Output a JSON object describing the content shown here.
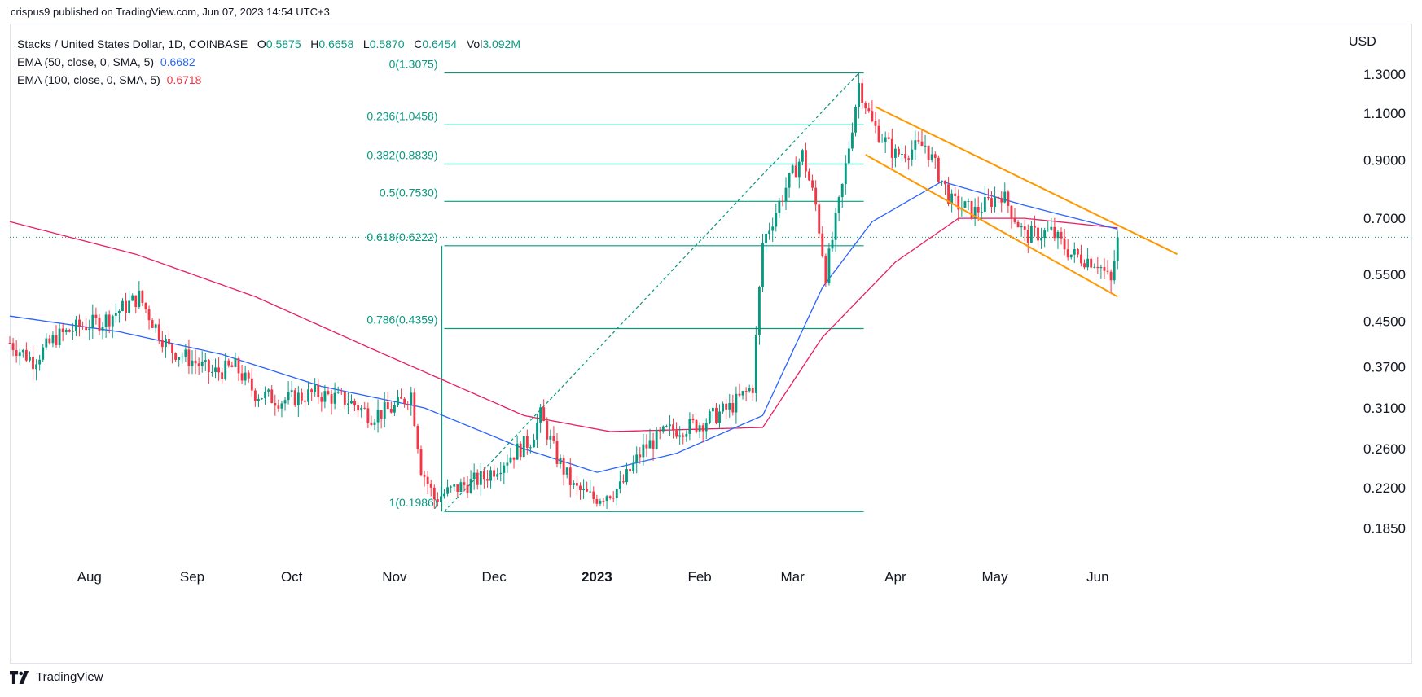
{
  "header": {
    "text": "crispus9 published on TradingView.com, Jun 07, 2023 14:54 UTC+3"
  },
  "legend": {
    "symbol": "Stacks / United States Dollar, 1D, COINBASE",
    "o_label": "O",
    "o": "0.5875",
    "h_label": "H",
    "h": "0.6658",
    "l_label": "L",
    "l": "0.5870",
    "c_label": "C",
    "c": "0.6454",
    "vol_label": "Vol",
    "vol": "3.092M",
    "ema50_label": "EMA (50, close, 0, SMA, 5)",
    "ema50": "0.6682",
    "ema100_label": "EMA (100, close, 0, SMA, 5)",
    "ema100": "0.6718"
  },
  "currency": "USD",
  "footer": {
    "brand": "TradingView"
  },
  "colors": {
    "up": "#089981",
    "down": "#f23645",
    "ema50": "#2962ff",
    "ema100": "#e91e63",
    "fib": "#089981",
    "channel": "#ff9800",
    "price_line": "#089981"
  },
  "chart_data": {
    "type": "candlestick",
    "title": "Stacks / United States Dollar, 1D, COINBASE",
    "xlabel": "",
    "ylabel": "USD",
    "y_scale": "log",
    "ylim": [
      0.16,
      1.45
    ],
    "y_ticks": [
      "1.3000",
      "1.1000",
      "0.9000",
      "0.7000",
      "0.5500",
      "0.4500",
      "0.3700",
      "0.3100",
      "0.2600",
      "0.2200",
      "0.1850"
    ],
    "x_ticks": [
      {
        "label": "Aug",
        "date": "2022-08-01"
      },
      {
        "label": "Sep",
        "date": "2022-09-01"
      },
      {
        "label": "Oct",
        "date": "2022-10-01"
      },
      {
        "label": "Nov",
        "date": "2022-11-01"
      },
      {
        "label": "Dec",
        "date": "2022-12-01"
      },
      {
        "label": "2023",
        "date": "2023-01-01",
        "bold": true
      },
      {
        "label": "Feb",
        "date": "2023-02-01"
      },
      {
        "label": "Mar",
        "date": "2023-03-01"
      },
      {
        "label": "Apr",
        "date": "2023-04-01"
      },
      {
        "label": "May",
        "date": "2023-05-01"
      },
      {
        "label": "Jun",
        "date": "2023-06-01"
      }
    ],
    "date_range": [
      "2022-07-08",
      "2023-07-01"
    ],
    "last_price": 0.6454,
    "close_path": [
      [
        "2022-07-08",
        0.41
      ],
      [
        "2022-07-15",
        0.38
      ],
      [
        "2022-07-22",
        0.42
      ],
      [
        "2022-07-29",
        0.44
      ],
      [
        "2022-08-05",
        0.45
      ],
      [
        "2022-08-12",
        0.48
      ],
      [
        "2022-08-16",
        0.5
      ],
      [
        "2022-08-20",
        0.45
      ],
      [
        "2022-08-25",
        0.4
      ],
      [
        "2022-09-01",
        0.38
      ],
      [
        "2022-09-07",
        0.36
      ],
      [
        "2022-09-14",
        0.37
      ],
      [
        "2022-09-20",
        0.33
      ],
      [
        "2022-09-28",
        0.32
      ],
      [
        "2022-10-08",
        0.33
      ],
      [
        "2022-10-18",
        0.32
      ],
      [
        "2022-10-25",
        0.3
      ],
      [
        "2022-11-01",
        0.31
      ],
      [
        "2022-11-06",
        0.33
      ],
      [
        "2022-11-09",
        0.24
      ],
      [
        "2022-11-13",
        0.21
      ],
      [
        "2022-11-20",
        0.22
      ],
      [
        "2022-11-28",
        0.23
      ],
      [
        "2022-12-05",
        0.25
      ],
      [
        "2022-12-12",
        0.27
      ],
      [
        "2022-12-15",
        0.3
      ],
      [
        "2022-12-20",
        0.25
      ],
      [
        "2022-12-25",
        0.22
      ],
      [
        "2022-12-31",
        0.21
      ],
      [
        "2023-01-08",
        0.22
      ],
      [
        "2023-01-15",
        0.26
      ],
      [
        "2023-01-22",
        0.28
      ],
      [
        "2023-02-01",
        0.29
      ],
      [
        "2023-02-10",
        0.31
      ],
      [
        "2023-02-17",
        0.34
      ],
      [
        "2023-02-20",
        0.63
      ],
      [
        "2023-02-27",
        0.8
      ],
      [
        "2023-03-04",
        0.92
      ],
      [
        "2023-03-08",
        0.74
      ],
      [
        "2023-03-11",
        0.55
      ],
      [
        "2023-03-16",
        0.8
      ],
      [
        "2023-03-21",
        1.25
      ],
      [
        "2023-03-25",
        1.05
      ],
      [
        "2023-04-01",
        0.92
      ],
      [
        "2023-04-10",
        0.96
      ],
      [
        "2023-04-18",
        0.75
      ],
      [
        "2023-04-25",
        0.72
      ],
      [
        "2023-05-03",
        0.78
      ],
      [
        "2023-05-10",
        0.65
      ],
      [
        "2023-05-18",
        0.66
      ],
      [
        "2023-05-24",
        0.6
      ],
      [
        "2023-06-01",
        0.58
      ],
      [
        "2023-06-05",
        0.53
      ],
      [
        "2023-06-07",
        0.6454
      ]
    ],
    "ema50_path": [
      [
        "2022-07-08",
        0.46
      ],
      [
        "2022-08-10",
        0.43
      ],
      [
        "2022-09-10",
        0.39
      ],
      [
        "2022-10-10",
        0.34
      ],
      [
        "2022-11-10",
        0.31
      ],
      [
        "2022-12-10",
        0.26
      ],
      [
        "2023-01-01",
        0.235
      ],
      [
        "2023-01-25",
        0.255
      ],
      [
        "2023-02-20",
        0.3
      ],
      [
        "2023-03-10",
        0.52
      ],
      [
        "2023-03-25",
        0.69
      ],
      [
        "2023-04-15",
        0.82
      ],
      [
        "2023-05-10",
        0.74
      ],
      [
        "2023-06-07",
        0.6682
      ]
    ],
    "ema100_path": [
      [
        "2022-07-08",
        0.69
      ],
      [
        "2022-08-15",
        0.6
      ],
      [
        "2022-09-20",
        0.5
      ],
      [
        "2022-10-25",
        0.4
      ],
      [
        "2022-12-10",
        0.3
      ],
      [
        "2023-01-05",
        0.28
      ],
      [
        "2023-02-20",
        0.285
      ],
      [
        "2023-03-10",
        0.42
      ],
      [
        "2023-04-01",
        0.58
      ],
      [
        "2023-04-20",
        0.7
      ],
      [
        "2023-05-10",
        0.7
      ],
      [
        "2023-06-07",
        0.6718
      ]
    ],
    "fibonacci": {
      "start_date": "2022-11-16",
      "end_date": "2023-03-21",
      "levels": [
        {
          "ratio": "0",
          "value": 1.3075,
          "label": "0(1.3075)"
        },
        {
          "ratio": "0.236",
          "value": 1.0458,
          "label": "0.236(1.0458)"
        },
        {
          "ratio": "0.382",
          "value": 0.8839,
          "label": "0.382(0.8839)"
        },
        {
          "ratio": "0.5",
          "value": 0.753,
          "label": "0.5(0.7530)"
        },
        {
          "ratio": "0.618",
          "value": 0.6222,
          "label": "0.618(0.6222)"
        },
        {
          "ratio": "0.786",
          "value": 0.4359,
          "label": "0.786(0.4359)"
        },
        {
          "ratio": "1",
          "value": 0.1986,
          "label": "1(0.1986)"
        }
      ]
    },
    "channel": {
      "upper": [
        [
          "2023-03-26",
          1.13
        ],
        [
          "2023-06-25",
          0.6
        ]
      ],
      "lower": [
        [
          "2023-03-23",
          0.92
        ],
        [
          "2023-06-07",
          0.5
        ]
      ]
    }
  }
}
